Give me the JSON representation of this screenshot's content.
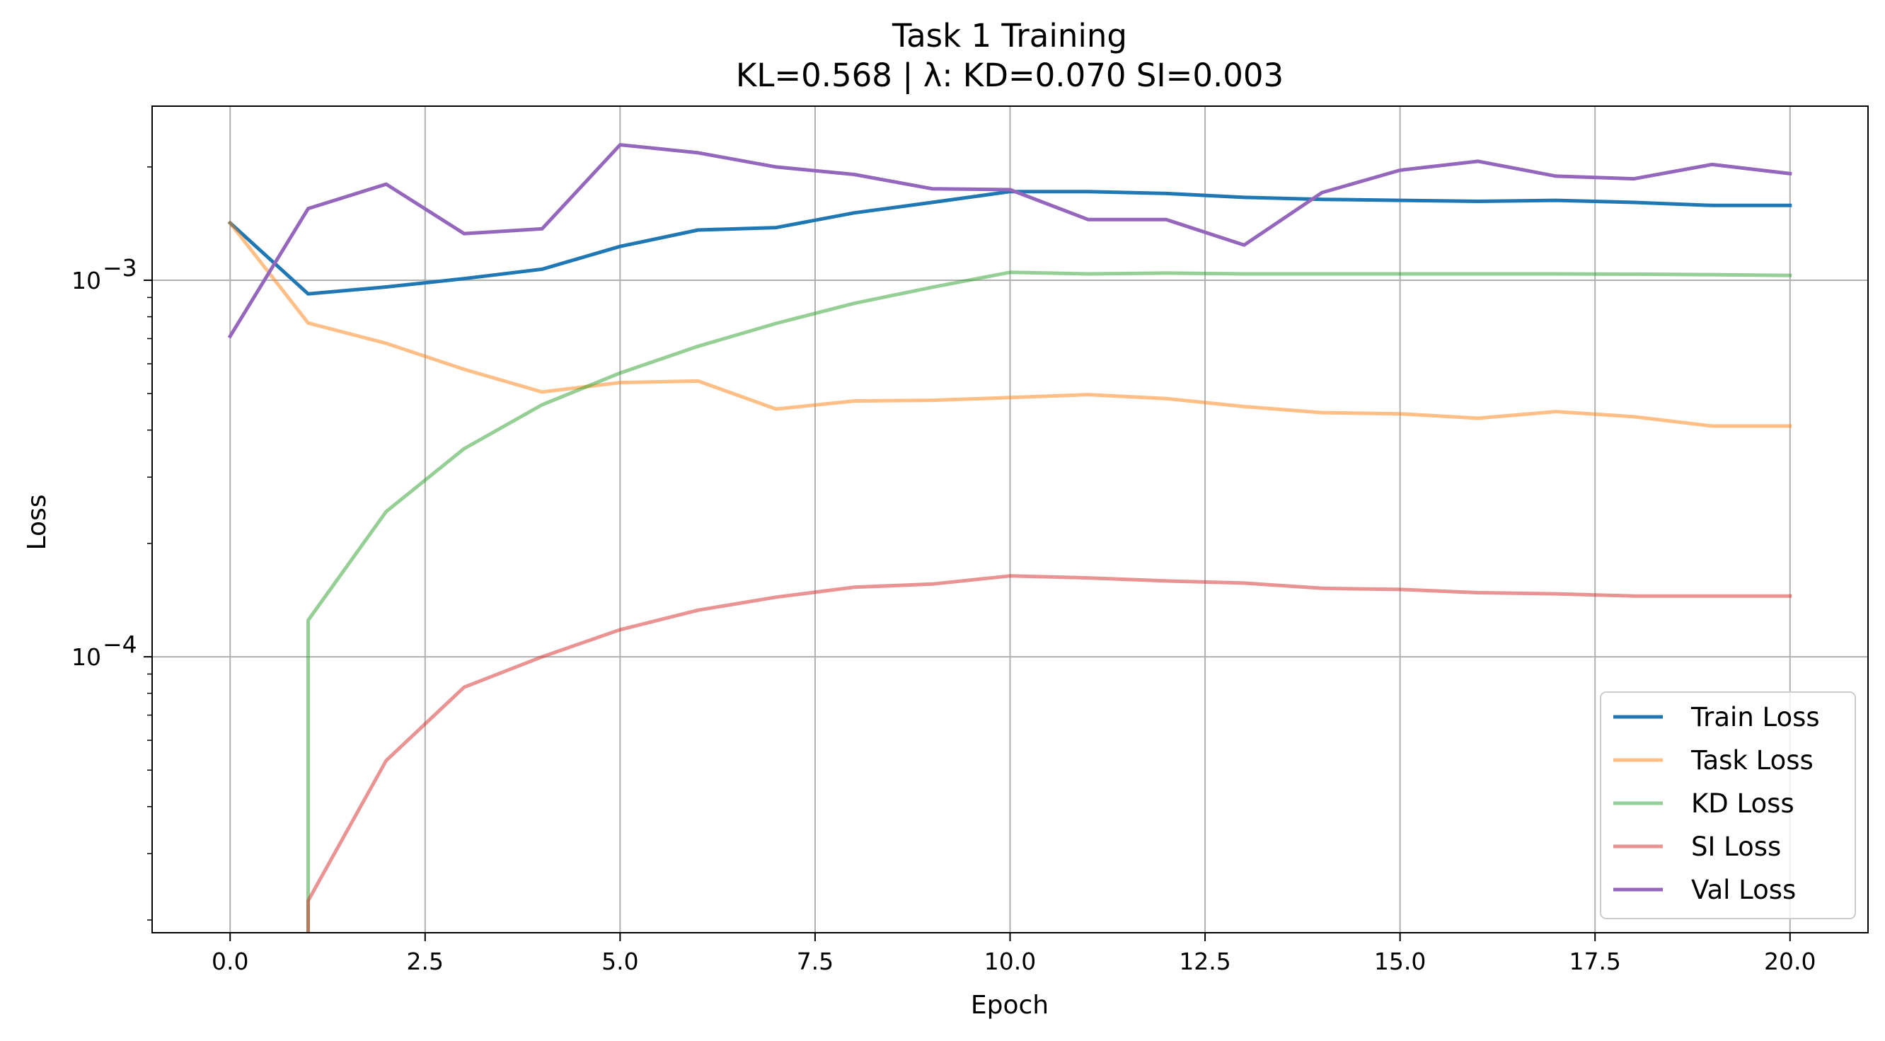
{
  "chart_data": {
    "type": "line",
    "title": "Task 1 Training",
    "subtitle": "KL=0.568 | λ: KD=0.070 SI=0.003",
    "xlabel": "Epoch",
    "ylabel": "Loss",
    "yscale": "log",
    "xlim": [
      -1,
      21
    ],
    "ylim": [
      1.85e-05,
      0.0029
    ],
    "grid": true,
    "legend_position": "lower-right",
    "x_ticks": [
      0,
      2.5,
      5,
      7.5,
      10,
      12.5,
      15,
      17.5,
      20
    ],
    "x_tick_labels": [
      "0.0",
      "2.5",
      "5.0",
      "7.5",
      "10.0",
      "12.5",
      "15.0",
      "17.5",
      "20.0"
    ],
    "y_major_ticks": [
      {
        "value": 0.001,
        "base": "10",
        "exp": "−3"
      },
      {
        "value": 0.0001,
        "base": "10",
        "exp": "−4"
      }
    ],
    "x": [
      0,
      1,
      2,
      3,
      4,
      5,
      6,
      7,
      8,
      9,
      10,
      11,
      12,
      13,
      14,
      15,
      16,
      17,
      18,
      19,
      20
    ],
    "series": [
      {
        "name": "Train Loss",
        "color": "#1f77b4",
        "opacity": 1.0,
        "values": [
          0.00142,
          0.00092,
          0.00096,
          0.00101,
          0.00107,
          0.00123,
          0.00136,
          0.00138,
          0.00151,
          0.00161,
          0.00172,
          0.00172,
          0.0017,
          0.00166,
          0.00164,
          0.00163,
          0.00162,
          0.00163,
          0.00161,
          0.00158,
          0.00158
        ]
      },
      {
        "name": "Task Loss",
        "color": "#ff7f0e",
        "opacity": 0.5,
        "values": [
          0.00142,
          0.00077,
          0.00068,
          0.00058,
          0.000505,
          0.000535,
          0.00054,
          0.000455,
          0.000478,
          0.00048,
          0.000488,
          0.000497,
          0.000485,
          0.000462,
          0.000445,
          0.000442,
          0.00043,
          0.000448,
          0.000434,
          0.00041,
          0.00041
        ]
      },
      {
        "name": "KD Loss",
        "color": "#2ca02c",
        "opacity": 0.5,
        "values": [
          null,
          0.000125,
          0.000243,
          0.000357,
          0.000467,
          0.000567,
          0.000668,
          0.000768,
          0.000868,
          0.000958,
          0.00105,
          0.00104,
          0.001045,
          0.00104,
          0.00104,
          0.00104,
          0.00104,
          0.00104,
          0.001038,
          0.001035,
          0.00103
        ]
      },
      {
        "name": "SI Loss",
        "color": "#d62728",
        "opacity": 0.5,
        "values": [
          null,
          2.25e-05,
          5.3e-05,
          8.3e-05,
          0.0001,
          0.000118,
          0.000133,
          0.000144,
          0.000153,
          0.000156,
          0.000164,
          0.000162,
          0.000159,
          0.000157,
          0.000152,
          0.000151,
          0.000148,
          0.000147,
          0.000145,
          0.000145,
          0.000145
        ]
      },
      {
        "name": "Val Loss",
        "color": "#9467bd",
        "opacity": 1.0,
        "values": [
          0.00071,
          0.00155,
          0.0018,
          0.00133,
          0.00137,
          0.00229,
          0.00218,
          0.002,
          0.00191,
          0.00175,
          0.00174,
          0.00145,
          0.00145,
          0.00124,
          0.00171,
          0.00196,
          0.00207,
          0.00189,
          0.00186,
          0.00203,
          0.00192
        ]
      }
    ]
  }
}
